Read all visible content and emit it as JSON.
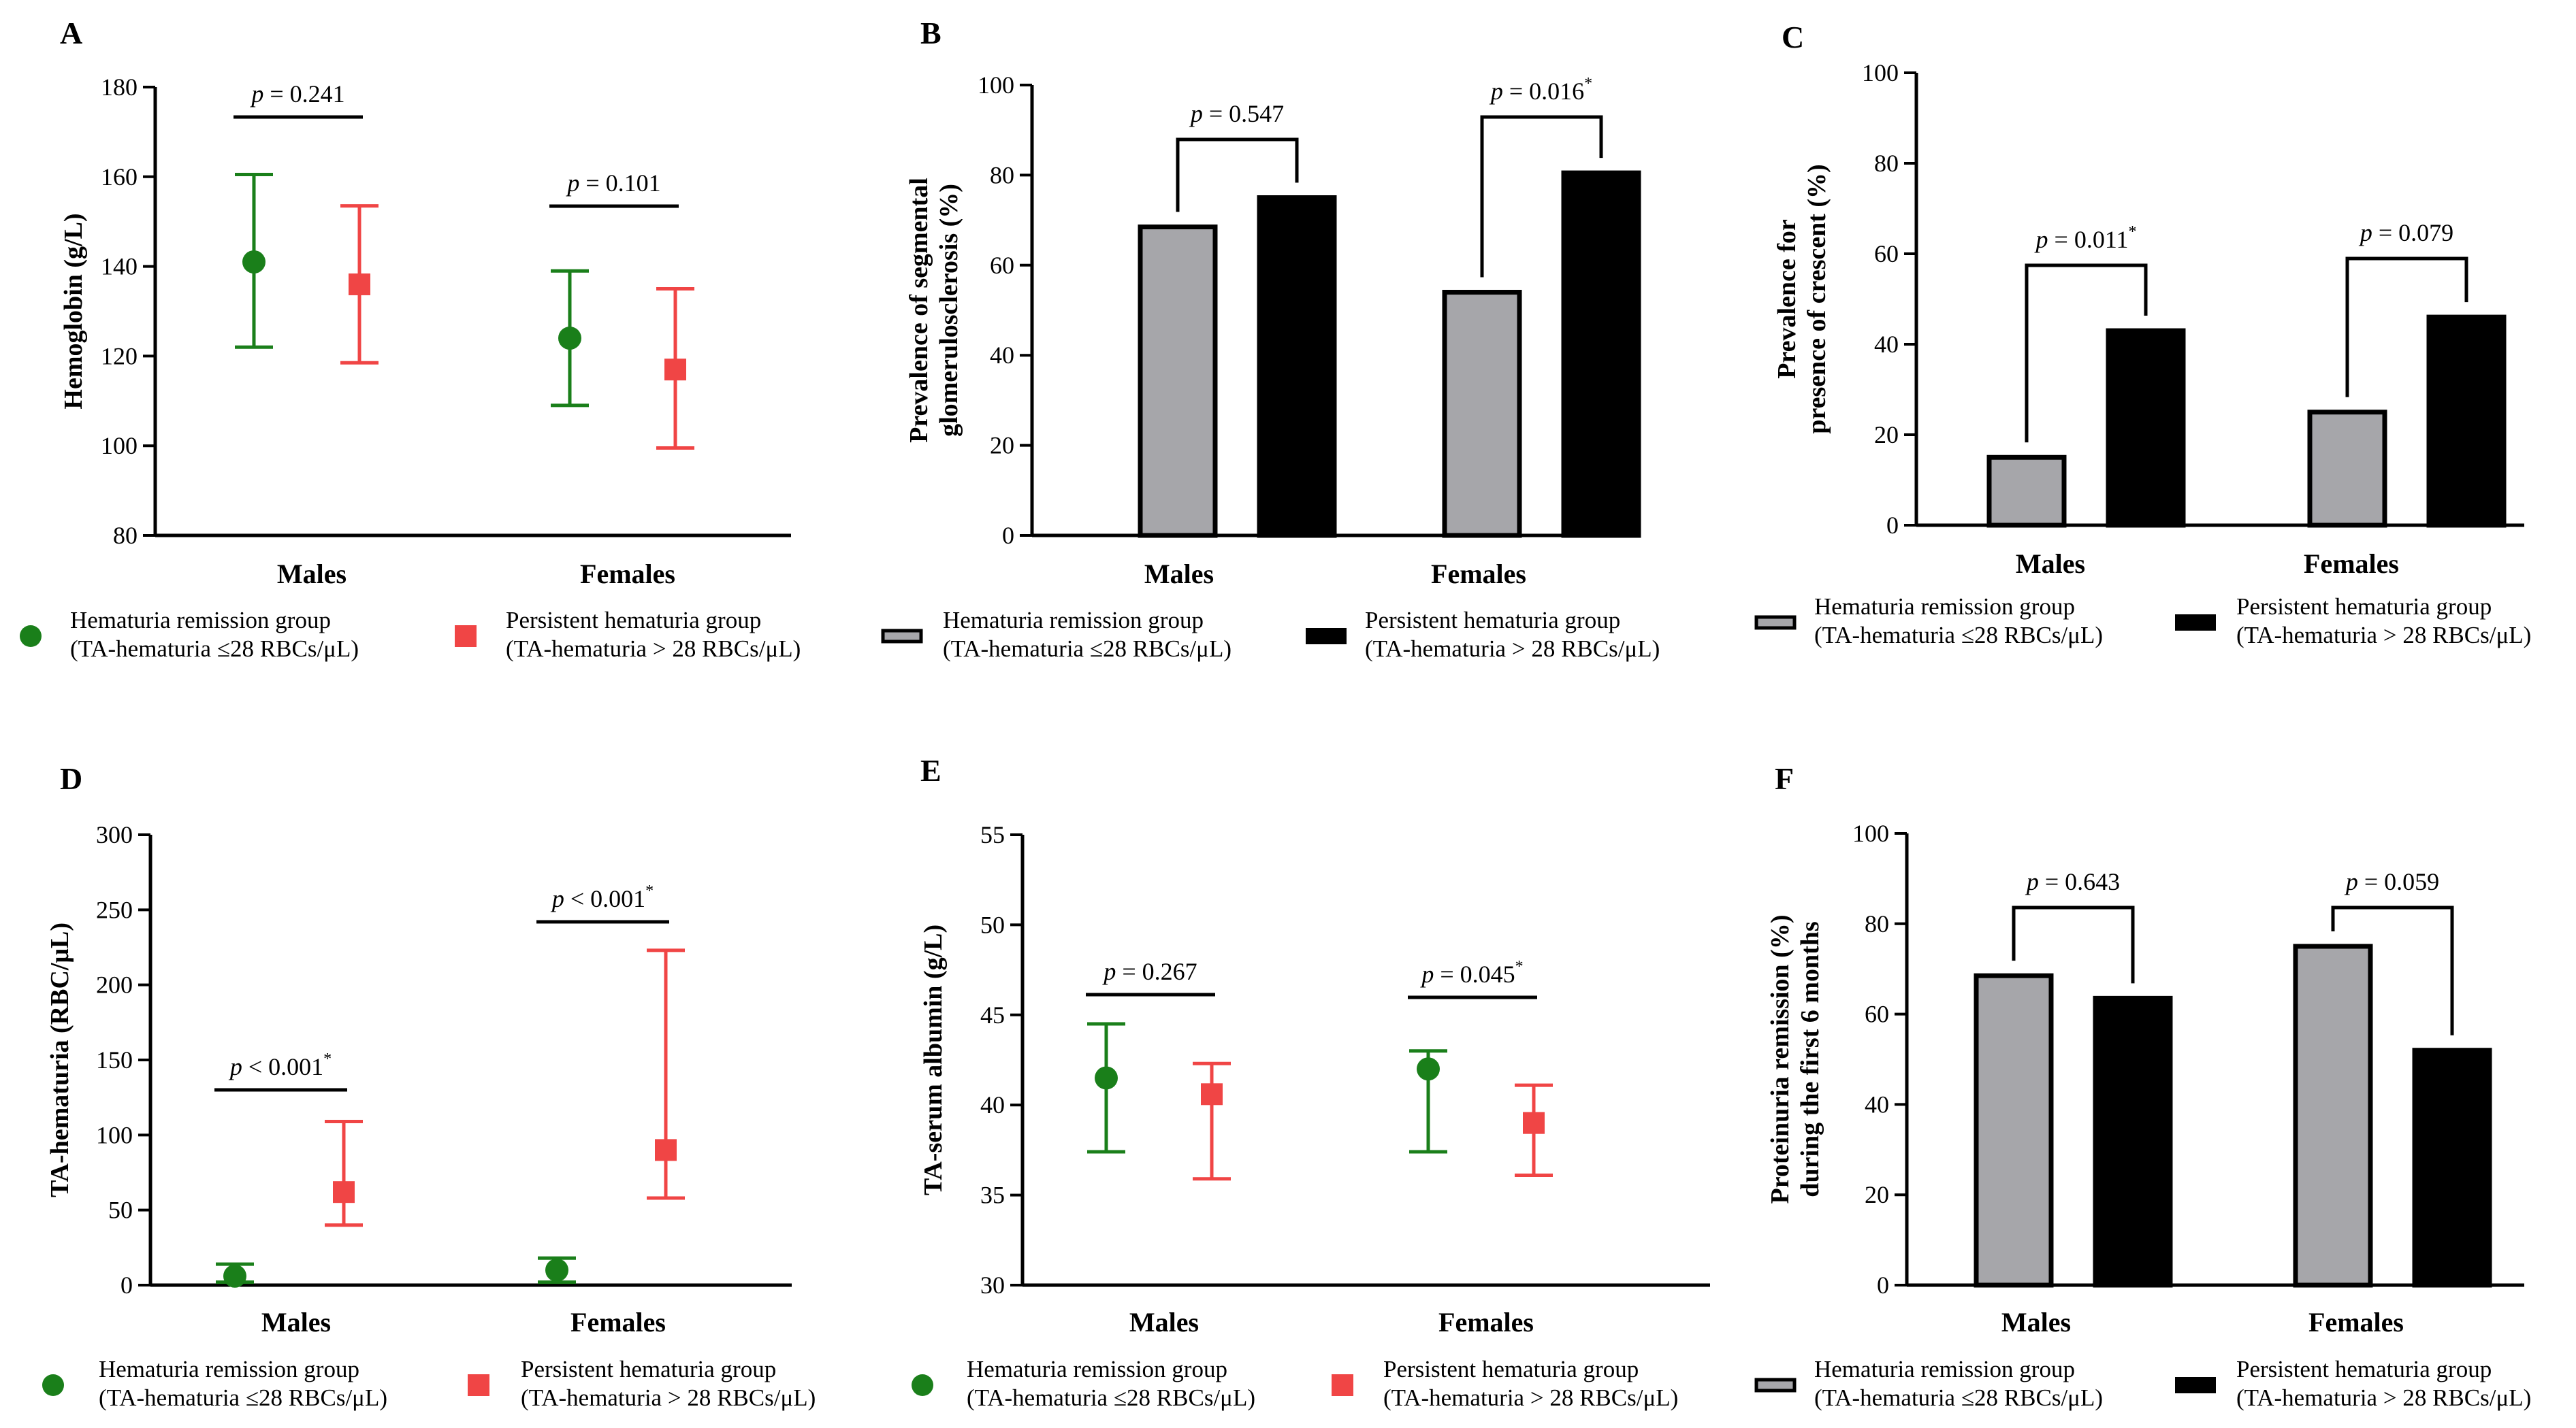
{
  "colors": {
    "remission_point": "#1a7f1a",
    "persistent_point": "#f04545",
    "remission_bar": "#a6a6aa",
    "persistent_bar": "#000000",
    "axis": "#000000"
  },
  "legends": {
    "scatter": {
      "remission_l1": "Hematuria remission group",
      "remission_l2": "(TA-hematuria ≤28 RBCs/μL)",
      "persistent_l1": "Persistent hematuria group",
      "persistent_l2": "(TA-hematuria > 28 RBCs/μL)"
    },
    "bar": {
      "remission_l1": "Hematuria remission group",
      "remission_l2": "(TA-hematuria ≤28 RBCs/μL)",
      "persistent_l1": "Persistent hematuria group",
      "persistent_l2": "(TA-hematuria > 28 RBCs/μL)"
    }
  },
  "chart_data": [
    {
      "panel": "A",
      "type": "scatter",
      "ylabel": "Hemoglobin (g/L)",
      "yticks": [
        80,
        100,
        120,
        140,
        160,
        180
      ],
      "ylim": [
        80,
        180
      ],
      "categories": [
        "Males",
        "Females"
      ],
      "series": [
        {
          "name": "Hematuria remission group",
          "values": [
            141,
            124
          ],
          "err_low": [
            122,
            109
          ],
          "err_high": [
            160.5,
            139
          ]
        },
        {
          "name": "Persistent hematuria group",
          "values": [
            136,
            117
          ],
          "err_low": [
            118.5,
            99.5
          ],
          "err_high": [
            153.5,
            135
          ]
        }
      ],
      "pvalues": [
        {
          "label": "p",
          "text": " = 0.241",
          "sup": "",
          "bracket": false
        },
        {
          "label": "p",
          "text": " = 0.101",
          "sup": "",
          "bracket": false
        }
      ]
    },
    {
      "panel": "B",
      "type": "bar",
      "ylabel": "Prevalence of segmental glomerulosclerosis (%)",
      "ylabel_lines": [
        "Prevalence of segmental",
        "glomerulosclerosis (%)"
      ],
      "yticks": [
        0,
        20,
        40,
        60,
        80,
        100
      ],
      "ylim": [
        0,
        100
      ],
      "categories": [
        "Males",
        "Females"
      ],
      "series": [
        {
          "name": "Hematuria remission group",
          "values": [
            68.5,
            54
          ]
        },
        {
          "name": "Persistent hematuria group",
          "values": [
            75,
            80.5
          ]
        }
      ],
      "pvalues": [
        {
          "label": "p",
          "text": " = 0.547",
          "sup": "",
          "bracket": true
        },
        {
          "label": "p",
          "text": " = 0.016",
          "sup": "*",
          "bracket": true
        }
      ]
    },
    {
      "panel": "C",
      "type": "bar",
      "ylabel": "Prevalence for presence of crescent (%)",
      "ylabel_lines": [
        "Prevalence for",
        "presence of crescent (%)"
      ],
      "yticks": [
        0,
        20,
        40,
        60,
        80,
        100
      ],
      "ylim": [
        0,
        100
      ],
      "categories": [
        "Males",
        "Females"
      ],
      "series": [
        {
          "name": "Hematuria remission group",
          "values": [
            15,
            25
          ]
        },
        {
          "name": "Persistent hematuria group",
          "values": [
            43,
            46
          ]
        }
      ],
      "pvalues": [
        {
          "label": "p",
          "text": " = 0.011",
          "sup": "*",
          "bracket": true
        },
        {
          "label": "p",
          "text": " = 0.079",
          "sup": "",
          "bracket": true
        }
      ]
    },
    {
      "panel": "D",
      "type": "scatter",
      "ylabel": "TA-hematuria (RBC/μL)",
      "yticks": [
        0,
        50,
        100,
        150,
        200,
        250,
        300
      ],
      "ylim": [
        0,
        300
      ],
      "categories": [
        "Males",
        "Females"
      ],
      "series": [
        {
          "name": "Hematuria remission group",
          "values": [
            6,
            10
          ],
          "err_low": [
            2,
            2
          ],
          "err_high": [
            14,
            18
          ]
        },
        {
          "name": "Persistent hematuria group",
          "values": [
            62,
            90
          ],
          "err_low": [
            40,
            58
          ],
          "err_high": [
            109,
            223
          ]
        }
      ],
      "pvalues": [
        {
          "label": "p",
          "text": " < 0.001",
          "sup": "*",
          "bracket": false
        },
        {
          "label": "p",
          "text": " < 0.001",
          "sup": "*",
          "bracket": false
        }
      ]
    },
    {
      "panel": "E",
      "type": "scatter",
      "ylabel": "TA-serum albumin (g/L)",
      "yticks": [
        30,
        35,
        40,
        45,
        50,
        55
      ],
      "ylim": [
        30,
        55
      ],
      "categories": [
        "Males",
        "Females"
      ],
      "series": [
        {
          "name": "Hematuria remission group",
          "values": [
            41.5,
            42
          ],
          "err_low": [
            37.4,
            37.4
          ],
          "err_high": [
            44.5,
            43
          ]
        },
        {
          "name": "Persistent hematuria group",
          "values": [
            40.6,
            39
          ],
          "err_low": [
            35.9,
            36.1
          ],
          "err_high": [
            42.3,
            41.1
          ]
        }
      ],
      "pvalues": [
        {
          "label": "p",
          "text": " = 0.267",
          "sup": "",
          "bracket": false
        },
        {
          "label": "p",
          "text": " = 0.045",
          "sup": "*",
          "bracket": false
        }
      ]
    },
    {
      "panel": "F",
      "type": "bar",
      "ylabel": "Proteinuria remission (%) during the first 6 months",
      "ylabel_lines": [
        "Proteinuria remission (%)",
        "during the first 6 months"
      ],
      "yticks": [
        0,
        20,
        40,
        60,
        80,
        100
      ],
      "ylim": [
        0,
        100
      ],
      "categories": [
        "Males",
        "Females"
      ],
      "series": [
        {
          "name": "Hematuria remission group",
          "values": [
            68.5,
            75
          ]
        },
        {
          "name": "Persistent hematuria group",
          "values": [
            63.5,
            52
          ]
        }
      ],
      "pvalues": [
        {
          "label": "p",
          "text": " = 0.643",
          "sup": "",
          "bracket": true
        },
        {
          "label": "p",
          "text": " = 0.059",
          "sup": "",
          "bracket": true
        }
      ]
    }
  ]
}
